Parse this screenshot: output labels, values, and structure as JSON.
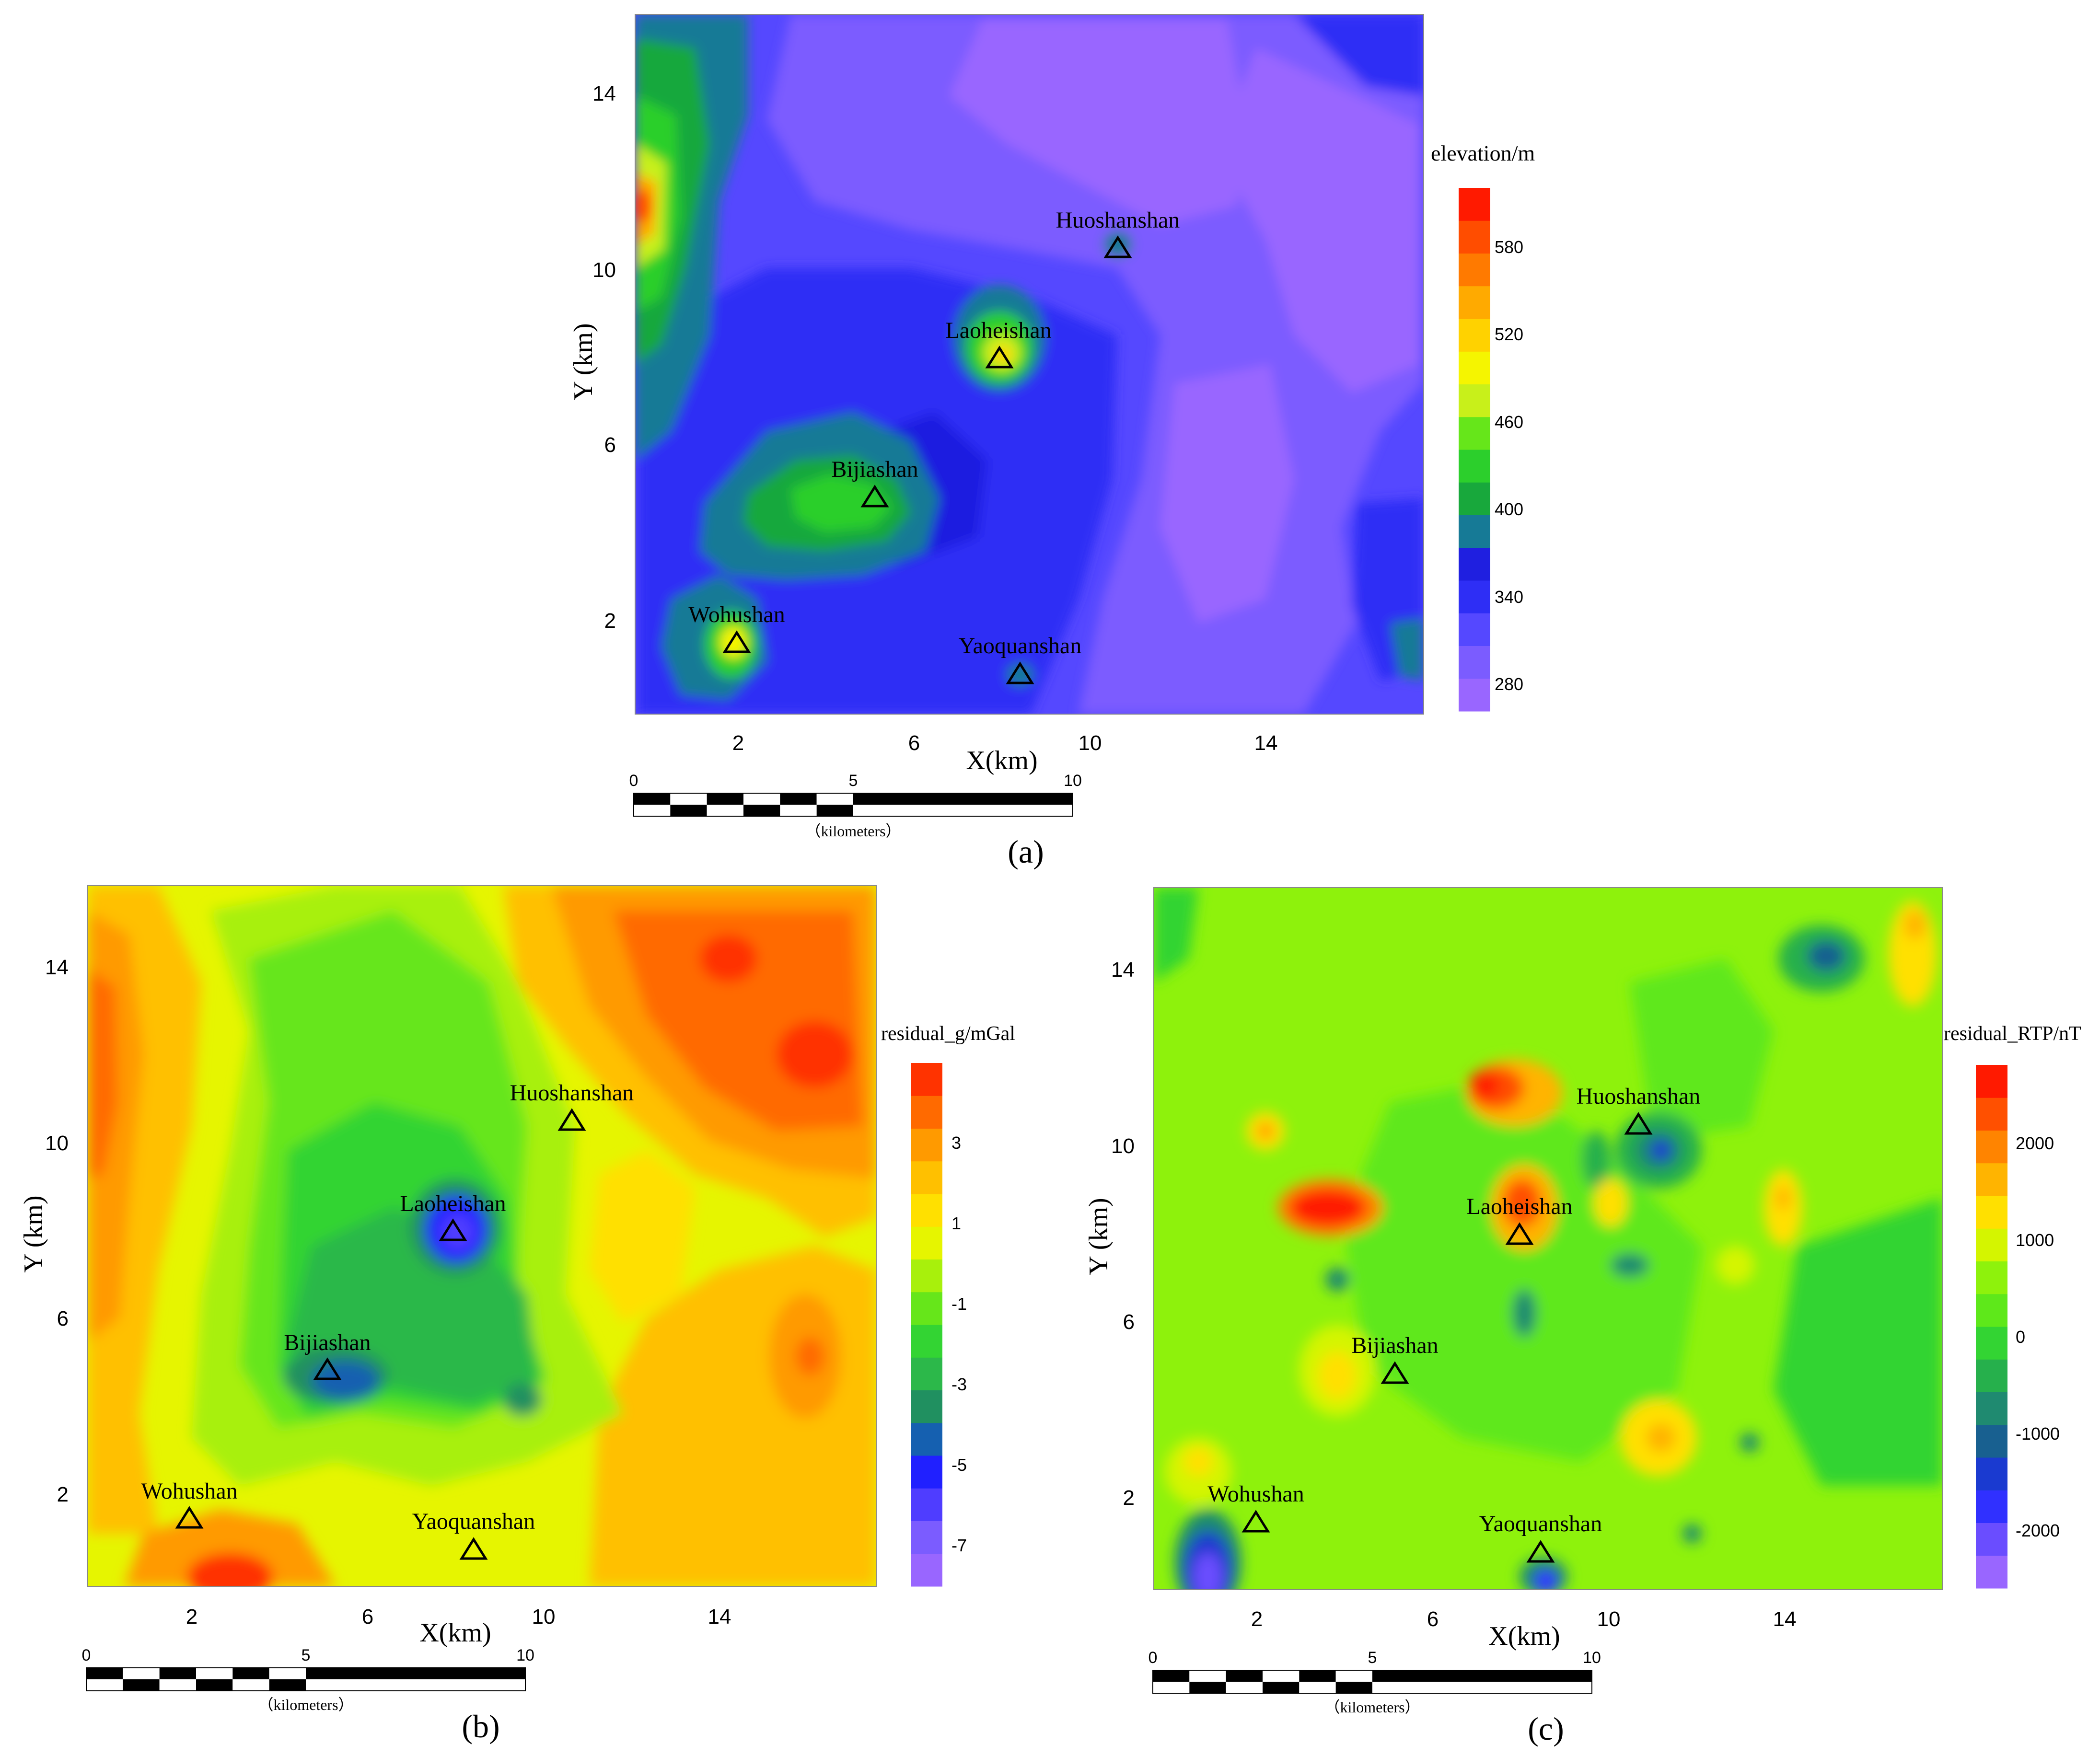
{
  "panels": [
    {
      "id": "a",
      "caption": "(a)",
      "xlabel": "X(km)",
      "ylabel": "Y (km)",
      "xticks": [
        "2",
        "6",
        "10",
        "14"
      ],
      "yticks": [
        "2",
        "6",
        "10",
        "14"
      ],
      "colorbar_title": "elevation/m",
      "colorbar_ticks": [
        "580",
        "520",
        "460",
        "400",
        "340",
        "280"
      ],
      "colors": [
        "#9966ff",
        "#7b5cff",
        "#5548ff",
        "#2e2ef5",
        "#1f1fe0",
        "#167a96",
        "#18a83c",
        "#2ccf2c",
        "#66e61a",
        "#c8f01a",
        "#f5f500",
        "#ffd200",
        "#ffaa00",
        "#ff7a00",
        "#ff4d00",
        "#ff1a00"
      ],
      "scale_labels": [
        "0",
        "5",
        "10"
      ],
      "scale_unit": "（kilometers）"
    },
    {
      "id": "b",
      "caption": "(b)",
      "xlabel": "X(km)",
      "ylabel": "Y (km)",
      "xticks": [
        "2",
        "6",
        "10",
        "14"
      ],
      "yticks": [
        "2",
        "6",
        "10",
        "14"
      ],
      "colorbar_title": "residual_g/mGal",
      "colorbar_ticks": [
        "3",
        "1",
        "-1",
        "-3",
        "-5",
        "-7"
      ],
      "colors": [
        "#9966ff",
        "#7b5cff",
        "#4f3dff",
        "#2020ff",
        "#1560b0",
        "#209060",
        "#2cb84a",
        "#33d433",
        "#66e61a",
        "#a8f00c",
        "#e6f500",
        "#ffe000",
        "#ffc000",
        "#ff9a00",
        "#ff6a00",
        "#ff3300"
      ],
      "scale_labels": [
        "0",
        "5",
        "10"
      ],
      "scale_unit": "（kilometers）"
    },
    {
      "id": "c",
      "caption": "(c)",
      "xlabel": "X(km)",
      "ylabel": "Y (km)",
      "xticks": [
        "2",
        "6",
        "10",
        "14"
      ],
      "yticks": [
        "2",
        "6",
        "10",
        "14"
      ],
      "colorbar_title": "residual_RTP/nT",
      "colorbar_ticks": [
        "2000",
        "1000",
        "0",
        "-1000",
        "-2000"
      ],
      "colors": [
        "#9966ff",
        "#6a4dff",
        "#3030ff",
        "#1a3ad0",
        "#186090",
        "#1f8a70",
        "#26b04c",
        "#33d433",
        "#5ee81a",
        "#8ef20c",
        "#d4f500",
        "#ffe000",
        "#ffb400",
        "#ff8400",
        "#ff5000",
        "#ff1a00"
      ],
      "scale_labels": [
        "0",
        "5",
        "10"
      ],
      "scale_unit": "（kilometers）"
    }
  ],
  "volcanoes": [
    "Huoshanshan",
    "Laoheishan",
    "Bijiashan",
    "Wohushan",
    "Yaoquanshan"
  ]
}
